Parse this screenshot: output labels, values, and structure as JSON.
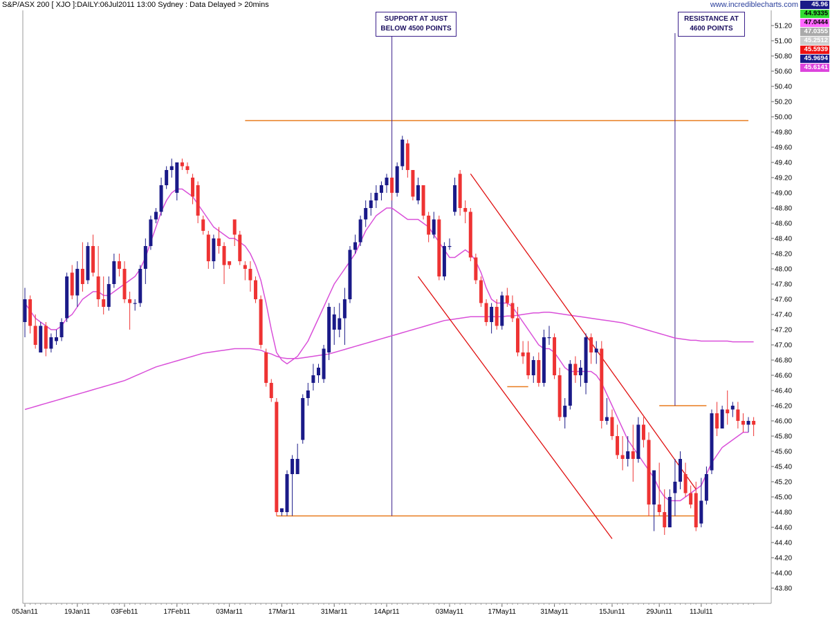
{
  "header": {
    "title": "S&P/ASX 200 [ XJO ]:DAILY:06Jul2011 13:00 Sydney : Data Delayed > 20mins",
    "site": "www.incrediblecharts.com"
  },
  "legend": [
    {
      "value": "45.96",
      "color": "#ffffff",
      "bg": "#1a1a88"
    },
    {
      "value": "44.9335",
      "color": "#000000",
      "bg": "#33dd33"
    },
    {
      "value": "47.0444",
      "color": "#000000",
      "bg": "#ff66ff"
    },
    {
      "value": "47.0355",
      "color": "#ffffff",
      "bg": "#aaaaaa"
    },
    {
      "value": "45.2512",
      "color": "#ffffff",
      "bg": "#cccccc"
    },
    {
      "value": "45.5939",
      "color": "#ffffff",
      "bg": "#ee1111"
    },
    {
      "value": "45.9694",
      "color": "#ffffff",
      "bg": "#1a1a88"
    },
    {
      "value": "45.6141",
      "color": "#ffffff",
      "bg": "#dd44dd"
    }
  ],
  "annotations": {
    "support": [
      "SUPPORT AT JUST",
      "BELOW 4500 POINTS"
    ],
    "resistance": [
      "RESISTANCE AT",
      "4600 POINTS"
    ]
  },
  "chart_data": {
    "type": "candlestick",
    "title": "S&P/ASX 200 [ XJO ]:DAILY:06Jul2011 13:00 Sydney : Data Delayed > 20mins",
    "xlabel": "",
    "ylabel": "",
    "ylim": [
      43.6,
      51.4
    ],
    "y_ticks": [
      "43.80",
      "44.00",
      "44.20",
      "44.40",
      "44.60",
      "44.80",
      "45.00",
      "45.20",
      "45.40",
      "45.60",
      "45.80",
      "46.00",
      "46.20",
      "46.40",
      "46.60",
      "46.80",
      "47.00",
      "47.20",
      "47.40",
      "47.60",
      "47.80",
      "48.00",
      "48.20",
      "48.40",
      "48.60",
      "48.80",
      "49.00",
      "49.20",
      "49.40",
      "49.60",
      "49.80",
      "50.00",
      "50.20",
      "50.40",
      "50.60",
      "50.80",
      "51.00",
      "51.20"
    ],
    "x_ticks": [
      "05Jan11",
      "19Jan11",
      "03Feb11",
      "17Feb11",
      "03Mar11",
      "17Mar11",
      "31Mar11",
      "14Apr11",
      "03May11",
      "17May11",
      "31May11",
      "15Jun11",
      "29Jun11",
      "11Jul11"
    ],
    "x_tick_index": [
      0,
      10,
      19,
      29,
      39,
      49,
      59,
      69,
      81,
      91,
      101,
      112,
      121,
      129
    ],
    "ohlc": [
      [
        47.3,
        47.75,
        47.1,
        47.6
      ],
      [
        47.6,
        47.65,
        47.15,
        47.25
      ],
      [
        47.25,
        47.4,
        46.95,
        47.0
      ],
      [
        46.9,
        47.3,
        46.9,
        47.25
      ],
      [
        47.25,
        47.3,
        46.85,
        46.95
      ],
      [
        46.95,
        47.15,
        46.9,
        47.1
      ],
      [
        47.05,
        47.2,
        47.0,
        47.1
      ],
      [
        47.1,
        47.35,
        47.05,
        47.3
      ],
      [
        47.35,
        47.95,
        47.3,
        47.9
      ],
      [
        47.95,
        48.05,
        47.6,
        47.65
      ],
      [
        47.65,
        48.1,
        47.5,
        48.0
      ],
      [
        48.0,
        48.35,
        47.7,
        47.8
      ],
      [
        47.85,
        48.35,
        47.8,
        48.3
      ],
      [
        48.3,
        48.45,
        47.9,
        47.95
      ],
      [
        47.9,
        48.3,
        47.5,
        47.6
      ],
      [
        47.6,
        47.9,
        47.4,
        47.5
      ],
      [
        47.5,
        47.9,
        47.45,
        47.8
      ],
      [
        47.8,
        48.2,
        47.75,
        48.1
      ],
      [
        48.1,
        48.2,
        47.9,
        48.0
      ],
      [
        48.0,
        48.1,
        47.55,
        47.6
      ],
      [
        47.6,
        47.7,
        47.2,
        47.55
      ],
      [
        47.55,
        47.6,
        47.45,
        47.55
      ],
      [
        47.55,
        48.05,
        47.5,
        48.0
      ],
      [
        48.0,
        48.4,
        47.8,
        48.3
      ],
      [
        48.3,
        48.7,
        48.25,
        48.65
      ],
      [
        48.65,
        48.8,
        48.6,
        48.75
      ],
      [
        48.75,
        49.2,
        48.7,
        49.1
      ],
      [
        49.1,
        49.35,
        49.05,
        49.3
      ],
      [
        49.3,
        49.45,
        49.2,
        49.35
      ],
      [
        49.0,
        49.4,
        48.9,
        49.4
      ],
      [
        49.4,
        49.45,
        49.3,
        49.35
      ],
      [
        49.35,
        49.4,
        49.25,
        49.3
      ],
      [
        49.2,
        49.25,
        48.85,
        48.95
      ],
      [
        49.1,
        49.15,
        48.6,
        48.7
      ],
      [
        48.65,
        48.7,
        48.45,
        48.5
      ],
      [
        48.45,
        48.5,
        48.0,
        48.1
      ],
      [
        48.1,
        48.45,
        48.0,
        48.4
      ],
      [
        48.4,
        48.55,
        48.2,
        48.3
      ],
      [
        48.3,
        48.35,
        47.8,
        48.05
      ],
      [
        48.1,
        48.1,
        48.0,
        48.05
      ],
      [
        48.65,
        48.65,
        48.3,
        48.45
      ],
      [
        48.45,
        48.5,
        48.05,
        48.1
      ],
      [
        48.05,
        48.1,
        47.85,
        48.0
      ],
      [
        48.0,
        48.1,
        47.7,
        47.85
      ],
      [
        47.85,
        47.9,
        47.55,
        47.6
      ],
      [
        47.6,
        47.65,
        46.95,
        47.0
      ],
      [
        46.9,
        46.95,
        46.45,
        46.5
      ],
      [
        46.5,
        46.55,
        46.25,
        46.3
      ],
      [
        46.25,
        46.3,
        44.75,
        44.8
      ],
      [
        44.8,
        44.85,
        44.75,
        44.85
      ],
      [
        44.8,
        45.35,
        44.75,
        45.3
      ],
      [
        45.3,
        45.55,
        44.75,
        45.5
      ],
      [
        45.3,
        45.7,
        45.3,
        45.5
      ],
      [
        45.75,
        46.35,
        45.7,
        46.3
      ],
      [
        46.3,
        46.5,
        46.2,
        46.4
      ],
      [
        46.5,
        46.75,
        46.4,
        46.6
      ],
      [
        46.6,
        46.75,
        46.5,
        46.7
      ],
      [
        46.55,
        47.0,
        46.5,
        46.95
      ],
      [
        46.9,
        47.55,
        46.8,
        47.5
      ],
      [
        47.2,
        47.5,
        47.0,
        47.4
      ],
      [
        47.2,
        47.55,
        47.1,
        47.35
      ],
      [
        47.35,
        47.75,
        47.0,
        47.6
      ],
      [
        47.6,
        48.3,
        47.55,
        48.25
      ],
      [
        48.25,
        48.45,
        48.2,
        48.35
      ],
      [
        48.35,
        48.7,
        48.3,
        48.65
      ],
      [
        48.65,
        48.9,
        48.55,
        48.8
      ],
      [
        48.8,
        49.0,
        48.7,
        48.9
      ],
      [
        48.9,
        49.1,
        48.8,
        49.0
      ],
      [
        49.0,
        49.15,
        48.9,
        49.1
      ],
      [
        49.1,
        49.25,
        49.0,
        49.2
      ],
      [
        49.2,
        49.2,
        48.9,
        49.0
      ],
      [
        49.0,
        49.4,
        48.95,
        49.35
      ],
      [
        49.35,
        49.75,
        49.3,
        49.7
      ],
      [
        49.65,
        49.7,
        49.2,
        49.3
      ],
      [
        49.3,
        49.3,
        48.9,
        48.95
      ],
      [
        48.9,
        49.2,
        48.85,
        49.1
      ],
      [
        49.1,
        49.1,
        48.65,
        48.7
      ],
      [
        48.7,
        48.75,
        48.35,
        48.45
      ],
      [
        48.45,
        48.75,
        48.4,
        48.65
      ],
      [
        48.65,
        48.7,
        47.85,
        47.9
      ],
      [
        47.9,
        48.35,
        47.85,
        48.3
      ],
      [
        48.3,
        48.4,
        48.25,
        48.3
      ],
      [
        48.75,
        49.2,
        48.7,
        49.1
      ],
      [
        49.25,
        49.3,
        48.7,
        48.8
      ],
      [
        48.8,
        48.9,
        48.6,
        48.75
      ],
      [
        48.75,
        48.8,
        48.1,
        48.15
      ],
      [
        48.15,
        48.2,
        47.8,
        47.85
      ],
      [
        47.85,
        47.9,
        47.5,
        47.55
      ],
      [
        47.55,
        47.6,
        47.25,
        47.3
      ],
      [
        47.3,
        47.55,
        47.15,
        47.5
      ],
      [
        47.5,
        47.6,
        47.2,
        47.25
      ],
      [
        47.25,
        47.7,
        47.2,
        47.65
      ],
      [
        47.65,
        47.75,
        47.5,
        47.55
      ],
      [
        47.55,
        47.65,
        47.3,
        47.35
      ],
      [
        47.35,
        47.5,
        46.85,
        46.9
      ],
      [
        46.9,
        47.05,
        46.75,
        46.85
      ],
      [
        46.9,
        47.05,
        46.55,
        46.6
      ],
      [
        46.6,
        46.85,
        46.5,
        46.8
      ],
      [
        46.8,
        46.9,
        46.45,
        46.5
      ],
      [
        46.5,
        47.2,
        46.45,
        47.1
      ],
      [
        47.1,
        47.25,
        47.0,
        47.1
      ],
      [
        47.1,
        47.15,
        46.55,
        46.6
      ],
      [
        46.6,
        46.7,
        46.0,
        46.05
      ],
      [
        46.05,
        46.3,
        45.9,
        46.2
      ],
      [
        46.2,
        46.8,
        46.15,
        46.75
      ],
      [
        46.75,
        46.85,
        46.5,
        46.6
      ],
      [
        46.6,
        46.8,
        46.45,
        46.7
      ],
      [
        46.5,
        47.15,
        46.35,
        47.1
      ],
      [
        47.1,
        47.15,
        46.75,
        46.9
      ],
      [
        46.9,
        47.05,
        46.75,
        46.95
      ],
      [
        46.95,
        47.05,
        45.9,
        46.0
      ],
      [
        46.0,
        46.3,
        45.95,
        46.05
      ],
      [
        46.05,
        46.15,
        45.75,
        45.8
      ],
      [
        45.8,
        45.95,
        45.5,
        45.55
      ],
      [
        45.55,
        45.8,
        45.35,
        45.5
      ],
      [
        45.5,
        45.8,
        45.4,
        45.6
      ],
      [
        45.6,
        45.95,
        45.2,
        45.5
      ],
      [
        45.5,
        46.05,
        45.45,
        45.95
      ],
      [
        45.95,
        46.05,
        45.65,
        45.75
      ],
      [
        45.75,
        45.85,
        44.75,
        44.9
      ],
      [
        44.9,
        45.35,
        44.55,
        45.35
      ],
      [
        44.9,
        45.45,
        44.75,
        44.8
      ],
      [
        44.8,
        45.1,
        44.5,
        44.6
      ],
      [
        44.6,
        45.1,
        44.6,
        45.0
      ],
      [
        45.05,
        45.5,
        44.75,
        45.2
      ],
      [
        45.2,
        45.6,
        45.1,
        45.5
      ],
      [
        45.3,
        45.45,
        45.0,
        45.05
      ],
      [
        45.05,
        45.15,
        44.85,
        44.9
      ],
      [
        45.05,
        45.2,
        44.55,
        44.6
      ],
      [
        44.65,
        45.25,
        44.6,
        44.95
      ],
      [
        44.95,
        45.4,
        44.9,
        45.3
      ],
      [
        45.35,
        46.15,
        45.3,
        46.1
      ],
      [
        46.1,
        46.25,
        45.8,
        45.9
      ],
      [
        45.9,
        46.2,
        45.9,
        46.15
      ],
      [
        46.15,
        46.4,
        45.95,
        46.1
      ],
      [
        46.15,
        46.25,
        46.05,
        46.2
      ],
      [
        46.15,
        46.25,
        45.9,
        46.0
      ],
      [
        46.0,
        46.1,
        45.85,
        45.95
      ],
      [
        45.95,
        46.05,
        45.85,
        46.0
      ],
      [
        46.0,
        46.05,
        45.8,
        45.95
      ]
    ],
    "ma_short": [
      47.55,
      47.45,
      47.35,
      47.3,
      47.25,
      47.2,
      47.2,
      47.25,
      47.35,
      47.4,
      47.5,
      47.6,
      47.65,
      47.7,
      47.7,
      47.65,
      47.65,
      47.7,
      47.75,
      47.8,
      47.85,
      47.9,
      48.0,
      48.15,
      48.35,
      48.55,
      48.75,
      48.9,
      49.0,
      49.05,
      49.05,
      49.0,
      48.95,
      48.85,
      48.75,
      48.65,
      48.55,
      48.5,
      48.45,
      48.4,
      48.4,
      48.35,
      48.3,
      48.2,
      48.05,
      47.85,
      47.55,
      47.2,
      46.9,
      46.8,
      46.75,
      46.8,
      46.85,
      46.95,
      47.05,
      47.2,
      47.35,
      47.5,
      47.65,
      47.8,
      47.9,
      48.0,
      48.1,
      48.2,
      48.35,
      48.5,
      48.6,
      48.7,
      48.75,
      48.8,
      48.8,
      48.75,
      48.7,
      48.65,
      48.65,
      48.65,
      48.6,
      48.55,
      48.45,
      48.35,
      48.25,
      48.15,
      48.15,
      48.2,
      48.25,
      48.2,
      48.1,
      47.95,
      47.75,
      47.6,
      47.55,
      47.55,
      47.55,
      47.5,
      47.4,
      47.3,
      47.2,
      47.1,
      47.0,
      46.95,
      46.95,
      46.9,
      46.8,
      46.7,
      46.65,
      46.65,
      46.65,
      46.65,
      46.65,
      46.6,
      46.5,
      46.35,
      46.2,
      46.05,
      45.9,
      45.75,
      45.65,
      45.55,
      45.45,
      45.35,
      45.25,
      45.1,
      45.0,
      44.95,
      44.95,
      44.95,
      45.0,
      45.05,
      45.1,
      45.15,
      45.3,
      45.45,
      45.55,
      45.65,
      45.7,
      45.75,
      45.8,
      45.85,
      45.85
    ],
    "ma_long": [
      46.15,
      46.17,
      46.19,
      46.21,
      46.23,
      46.25,
      46.27,
      46.29,
      46.31,
      46.33,
      46.35,
      46.37,
      46.39,
      46.41,
      46.43,
      46.45,
      46.47,
      46.49,
      46.51,
      46.53,
      46.56,
      46.59,
      46.62,
      46.65,
      46.68,
      46.71,
      46.73,
      46.75,
      46.77,
      46.79,
      46.81,
      46.83,
      46.85,
      46.87,
      46.89,
      46.9,
      46.91,
      46.92,
      46.93,
      46.94,
      46.95,
      46.95,
      46.95,
      46.95,
      46.94,
      46.93,
      46.9,
      46.88,
      46.85,
      46.83,
      46.82,
      46.82,
      46.82,
      46.83,
      46.84,
      46.85,
      46.86,
      46.87,
      46.88,
      46.9,
      46.92,
      46.94,
      46.96,
      46.98,
      47.0,
      47.02,
      47.04,
      47.06,
      47.08,
      47.1,
      47.12,
      47.14,
      47.16,
      47.18,
      47.2,
      47.22,
      47.24,
      47.26,
      47.28,
      47.3,
      47.32,
      47.33,
      47.34,
      47.35,
      47.36,
      47.37,
      47.37,
      47.37,
      47.37,
      47.37,
      47.37,
      47.37,
      47.38,
      47.38,
      47.39,
      47.4,
      47.41,
      47.42,
      47.42,
      47.43,
      47.43,
      47.42,
      47.41,
      47.4,
      47.39,
      47.38,
      47.37,
      47.36,
      47.35,
      47.34,
      47.33,
      47.32,
      47.31,
      47.3,
      47.29,
      47.27,
      47.25,
      47.23,
      47.21,
      47.19,
      47.17,
      47.15,
      47.13,
      47.11,
      47.09,
      47.08,
      47.07,
      47.06,
      47.06,
      47.05,
      47.05,
      47.05,
      47.05,
      47.05,
      47.05,
      47.04,
      47.04,
      47.04,
      47.04,
      47.04
    ],
    "channel_upper": {
      "from": {
        "x": 85,
        "y": 49.25
      },
      "to": {
        "x": 128,
        "y": 45.1
      }
    },
    "channel_lower": {
      "from": {
        "x": 75,
        "y": 47.9
      },
      "to": {
        "x": 112,
        "y": 44.45
      }
    },
    "h_lines": [
      {
        "y": 49.95,
        "from_x": 42,
        "to_x": 138
      },
      {
        "y": 44.75,
        "from_x": 48,
        "to_x": 128
      },
      {
        "y": 46.2,
        "from_x": 121,
        "to_x": 130
      },
      {
        "y": 46.45,
        "from_x": 92,
        "to_x": 96
      }
    ],
    "v_lines": [
      {
        "x": 70,
        "y_top": 51.4,
        "y_bottom": 44.75
      },
      {
        "x": 124,
        "y_top": 51.4,
        "y_bottom": 46.2
      }
    ]
  }
}
